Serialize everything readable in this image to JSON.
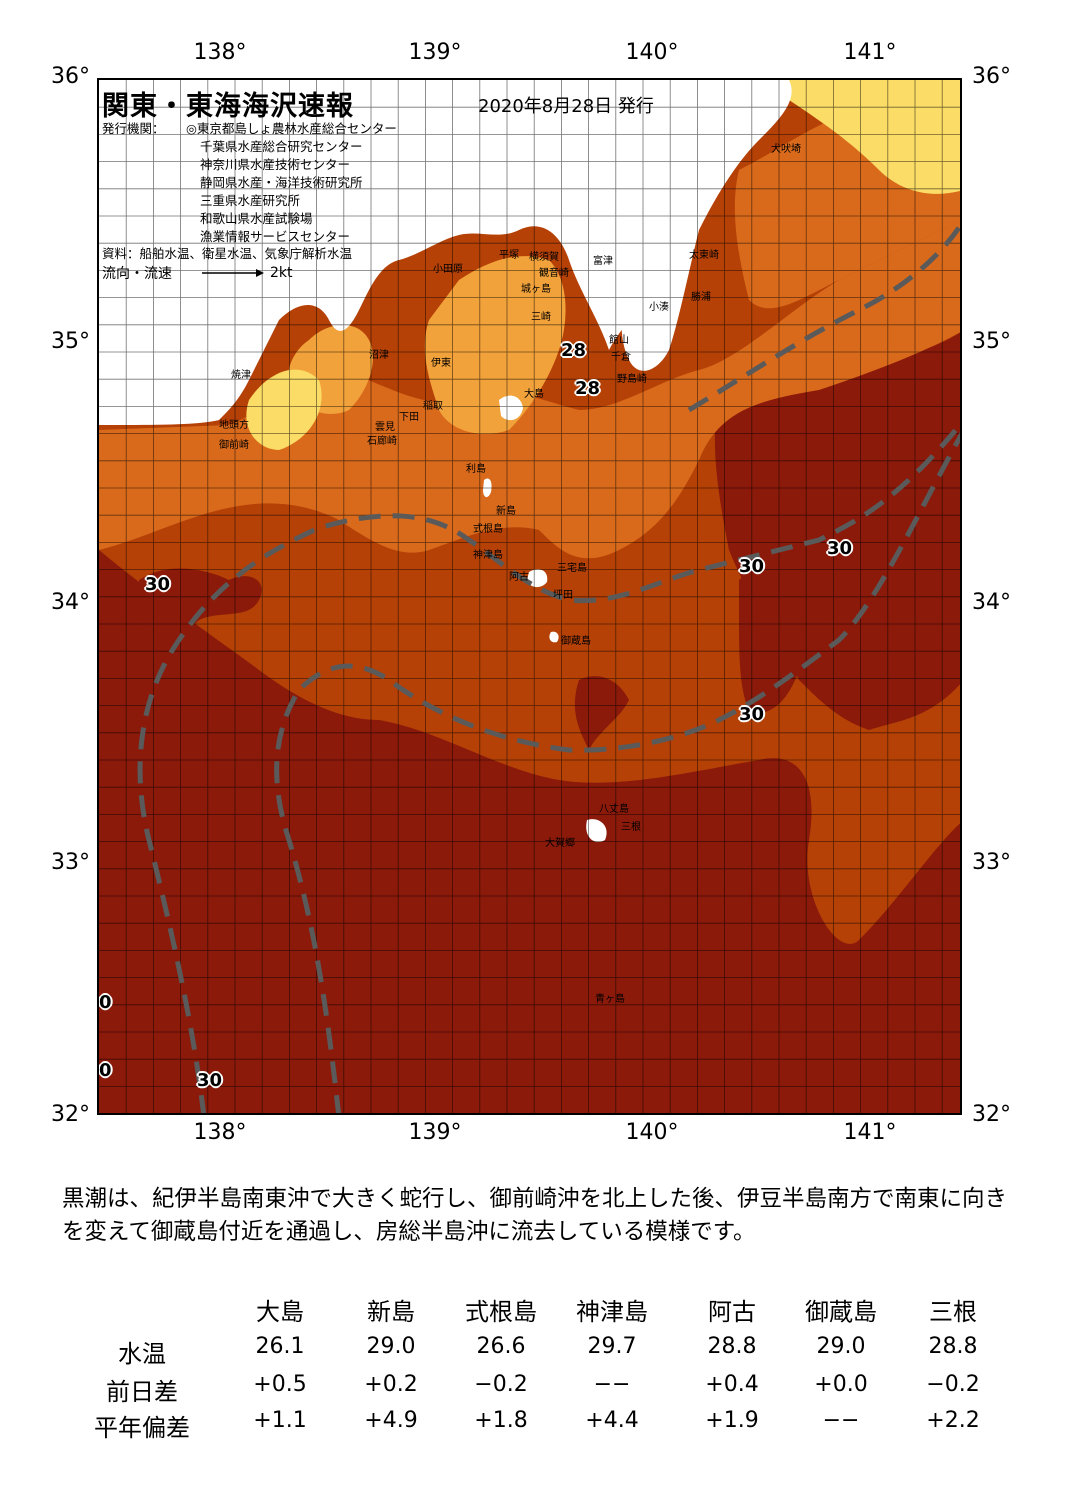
{
  "axes": {
    "lon_labels": [
      "138°",
      "139°",
      "140°",
      "141°"
    ],
    "lat_labels": [
      "36°",
      "35°",
      "34°",
      "33°",
      "32°"
    ]
  },
  "map": {
    "title": "関東・東海海沢速報",
    "issue_date": "2020年8月28日 発行",
    "publisher_header": "発行機関：",
    "publishers": [
      "◎東京都島しょ農林水産総合センター",
      "千葉県水産総合研究センター",
      "神奈川県水産技術センター",
      "静岡県水産・海洋技術研究所",
      "三重県水産研究所",
      "和歌山県水産試験場",
      "漁業情報サービスセンター"
    ],
    "sources": "資料：船舶水温、衛星水温、気象庁解析水温",
    "flow_label": "流向・流速",
    "flow_scale": "2kt",
    "colors": {
      "warmest": "#8b1a0a",
      "warm": "#b54106",
      "mid": "#d96a1c",
      "cool": "#f2a23a",
      "coolest": "#fbdc66",
      "land": "#ffffff",
      "kuroshio_line": "#5a5a5a"
    },
    "place_names": [
      "犬吠埼",
      "太東崎",
      "勝浦",
      "小湊",
      "館山",
      "千倉",
      "野島崎",
      "富津",
      "横須賀",
      "観音崎",
      "城ヶ島",
      "三崎",
      "平塚",
      "小田原",
      "沼津",
      "伊東",
      "稲取",
      "下田",
      "石廊崎",
      "雲見",
      "焼津",
      "地頭方",
      "御前崎",
      "大島",
      "利島",
      "新島",
      "式根島",
      "神津島",
      "三宅島",
      "阿古",
      "坪田",
      "御蔵島",
      "八丈島",
      "三根",
      "大賀郷",
      "青ヶ島"
    ],
    "isotherm_labels": [
      "28",
      "28",
      "30",
      "30",
      "30",
      "30",
      "30",
      "0",
      "0"
    ],
    "depth_labels": [
      "200",
      "1000",
      "200",
      "1000",
      "1000",
      "1000",
      "1000",
      "1000",
      "1000",
      "200",
      "1000",
      "1000",
      "1000"
    ]
  },
  "description": "黒潮は、紀伊半島南東沖で大きく蛇行し、御前崎沖を北上した後、伊豆半島南方で南東に向きを変えて御蔵島付近を通過し、房総半島沖に流去している模様です。",
  "table": {
    "stations": [
      "大島",
      "新島",
      "式根島",
      "神津島",
      "阿古",
      "御蔵島",
      "三根"
    ],
    "rows": [
      {
        "label": "水温",
        "values": [
          "26.1",
          "29.0",
          "26.6",
          "29.7",
          "28.8",
          "29.0",
          "28.8"
        ]
      },
      {
        "label": "前日差",
        "values": [
          "+0.5",
          "+0.2",
          "−0.2",
          "−−",
          "+0.4",
          "+0.0",
          "−0.2"
        ]
      },
      {
        "label": "平年偏差",
        "values": [
          "+1.1",
          "+4.9",
          "+1.8",
          "+4.4",
          "+1.9",
          "−−",
          "+2.2"
        ]
      }
    ]
  }
}
